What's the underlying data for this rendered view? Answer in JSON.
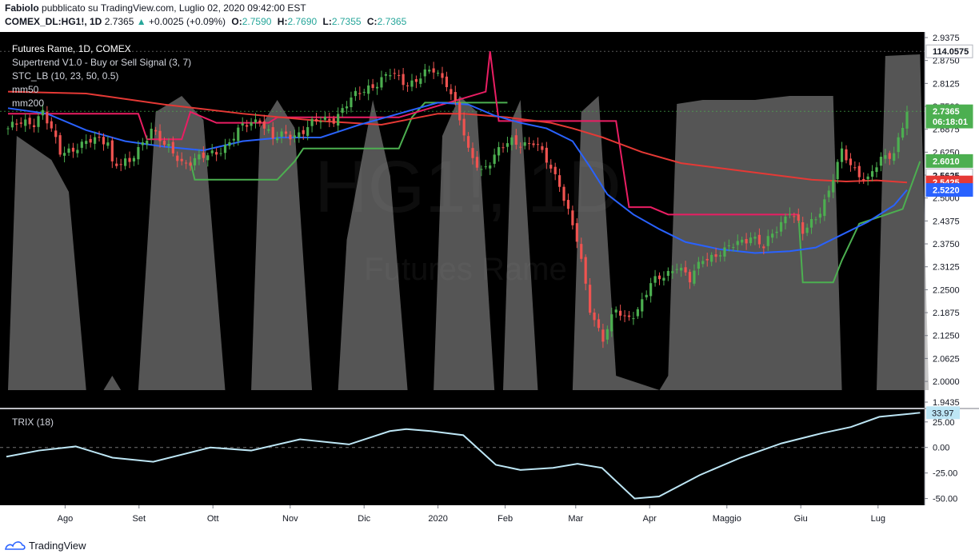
{
  "header": {
    "author": "Fabiolo",
    "published": "pubblicato su TradingView.com, Luglio 02, 2020 09:42:00 EST",
    "symbol": "COMEX_DL:HG1!, 1D",
    "last": "2.7365",
    "change": "+0.0025 (+0.09%)",
    "o_label": "O:",
    "o": "2.7590",
    "h_label": "H:",
    "h": "2.7690",
    "l_label": "L:",
    "l": "2.7355",
    "c_label": "C:",
    "c": "2.7365"
  },
  "legend": {
    "title": "Futures Rame, 1D, COMEX",
    "indicators": [
      "Supertrend V1.0 - Buy or Sell Signal (3, 7)",
      "STC_LB (10, 23, 50, 0.5)",
      "mm50",
      "mm200"
    ]
  },
  "watermark": {
    "symbol": "HG1!, 1D",
    "name": "Futures Rame"
  },
  "trix_label": "TRIX (18)",
  "footer": {
    "brand": "TradingView"
  },
  "colors": {
    "background": "#000000",
    "up": "#4caf50",
    "down": "#ef5350",
    "mm50": "#2962ff",
    "mm200": "#e53935",
    "supertrend_up": "#4caf50",
    "supertrend_down": "#e91e63",
    "stc_fill": "#9a9a9a",
    "trix": "#bde6f5"
  },
  "chart_data": [
    {
      "type": "candlestick",
      "title": "Futures Rame, 1D, COMEX",
      "x_ticks": [
        "Ago",
        "Set",
        "Ott",
        "Nov",
        "Dic",
        "2020",
        "Feb",
        "Mar",
        "Apr",
        "Maggio",
        "Giu",
        "Lug"
      ],
      "y_ticks": [
        "2.9375",
        "2.8750",
        "2.8125",
        "2.7500",
        "2.6875",
        "2.6250",
        "2.5625",
        "2.5000",
        "2.4375",
        "2.3750",
        "2.3125",
        "2.2500",
        "2.1875",
        "2.1250",
        "2.0625",
        "2.0000",
        "1.9435"
      ],
      "ylim": [
        1.9435,
        2.9375
      ],
      "badges": [
        {
          "label": "114.0575",
          "value": 2.9,
          "style": "white"
        },
        {
          "label": "2.7365",
          "value": 2.7365,
          "style": "green"
        },
        {
          "label": "06:18:01",
          "value": 2.7085,
          "style": "green"
        },
        {
          "label": "2.6010",
          "value": 2.601,
          "style": "green"
        },
        {
          "label": "2.5625",
          "value": 2.562,
          "style": "white"
        },
        {
          "label": "2.5425",
          "value": 2.5425,
          "style": "red"
        },
        {
          "label": "2.5220",
          "value": 2.522,
          "style": "blue"
        }
      ],
      "price_path": [
        [
          0,
          2.69
        ],
        [
          6,
          2.71
        ],
        [
          8,
          2.74
        ],
        [
          12,
          2.62
        ],
        [
          16,
          2.645
        ],
        [
          23,
          2.66
        ],
        [
          24,
          2.6
        ],
        [
          28,
          2.59
        ],
        [
          33,
          2.695
        ],
        [
          36,
          2.64
        ],
        [
          40,
          2.6
        ],
        [
          46,
          2.61
        ],
        [
          50,
          2.645
        ],
        [
          54,
          2.69
        ],
        [
          58,
          2.72
        ],
        [
          61,
          2.66
        ],
        [
          66,
          2.675
        ],
        [
          70,
          2.7
        ],
        [
          75,
          2.72
        ],
        [
          78,
          2.755
        ],
        [
          83,
          2.805
        ],
        [
          88,
          2.835
        ],
        [
          92,
          2.815
        ],
        [
          98,
          2.845
        ],
        [
          101,
          2.82
        ],
        [
          103,
          2.76
        ],
        [
          106,
          2.62
        ],
        [
          109,
          2.58
        ],
        [
          112,
          2.615
        ],
        [
          116,
          2.655
        ],
        [
          121,
          2.65
        ],
        [
          124,
          2.6
        ],
        [
          127,
          2.545
        ],
        [
          131,
          2.38
        ],
        [
          134,
          2.2
        ],
        [
          137,
          2.12
        ],
        [
          140,
          2.19
        ],
        [
          142,
          2.17
        ],
        [
          145,
          2.2
        ],
        [
          148,
          2.26
        ],
        [
          151,
          2.29
        ],
        [
          154,
          2.32
        ],
        [
          157,
          2.27
        ],
        [
          160,
          2.34
        ],
        [
          165,
          2.35
        ],
        [
          168,
          2.38
        ],
        [
          171,
          2.4
        ],
        [
          174,
          2.36
        ],
        [
          177,
          2.42
        ],
        [
          180,
          2.47
        ],
        [
          183,
          2.4
        ],
        [
          186,
          2.45
        ],
        [
          189,
          2.52
        ],
        [
          192,
          2.62
        ],
        [
          195,
          2.58
        ],
        [
          198,
          2.55
        ],
        [
          201,
          2.6
        ],
        [
          204,
          2.63
        ],
        [
          207,
          2.7365
        ]
      ],
      "series": [
        {
          "name": "mm50",
          "type": "line",
          "values": [
            [
              0,
              2.745
            ],
            [
              9,
              2.73
            ],
            [
              18,
              2.685
            ],
            [
              27,
              2.655
            ],
            [
              36,
              2.64
            ],
            [
              45,
              2.63
            ],
            [
              54,
              2.655
            ],
            [
              63,
              2.665
            ],
            [
              72,
              2.665
            ],
            [
              81,
              2.7
            ],
            [
              90,
              2.73
            ],
            [
              99,
              2.76
            ],
            [
              106,
              2.755
            ],
            [
              112,
              2.725
            ],
            [
              118,
              2.705
            ],
            [
              124,
              2.69
            ],
            [
              130,
              2.655
            ],
            [
              134,
              2.585
            ],
            [
              138,
              2.51
            ],
            [
              144,
              2.455
            ],
            [
              150,
              2.415
            ],
            [
              156,
              2.38
            ],
            [
              164,
              2.36
            ],
            [
              172,
              2.35
            ],
            [
              180,
              2.355
            ],
            [
              186,
              2.365
            ],
            [
              192,
              2.4
            ],
            [
              198,
              2.435
            ],
            [
              204,
              2.48
            ],
            [
              207,
              2.522
            ]
          ]
        },
        {
          "name": "mm200",
          "type": "line",
          "values": [
            [
              0,
              2.79
            ],
            [
              18,
              2.785
            ],
            [
              36,
              2.755
            ],
            [
              54,
              2.73
            ],
            [
              72,
              2.71
            ],
            [
              86,
              2.7
            ],
            [
              99,
              2.73
            ],
            [
              105,
              2.73
            ],
            [
              115,
              2.72
            ],
            [
              125,
              2.705
            ],
            [
              130,
              2.69
            ],
            [
              137,
              2.665
            ],
            [
              146,
              2.625
            ],
            [
              155,
              2.595
            ],
            [
              165,
              2.58
            ],
            [
              175,
              2.565
            ],
            [
              185,
              2.55
            ],
            [
              193,
              2.545
            ],
            [
              200,
              2.548
            ],
            [
              207,
              2.5425
            ]
          ]
        }
      ]
    },
    {
      "type": "line",
      "title": "TRIX (18)",
      "y_ticks": [
        "25.00",
        "0.00",
        "-25.00",
        "-50.00"
      ],
      "ylim": [
        -55,
        35
      ],
      "last_value": "33.97",
      "series": [
        {
          "name": "TRIX (18)",
          "values": [
            [
              0,
              -9
            ],
            [
              8,
              -3
            ],
            [
              17,
              1
            ],
            [
              26,
              -10
            ],
            [
              36,
              -14
            ],
            [
              50,
              0
            ],
            [
              60,
              -3
            ],
            [
              72,
              8
            ],
            [
              84,
              3
            ],
            [
              94,
              16
            ],
            [
              98,
              18
            ],
            [
              104,
              16
            ],
            [
              112,
              12
            ],
            [
              120,
              -17
            ],
            [
              126,
              -22
            ],
            [
              134,
              -20
            ],
            [
              140,
              -16
            ],
            [
              146,
              -20
            ],
            [
              154,
              -50
            ],
            [
              160,
              -48
            ],
            [
              170,
              -27
            ],
            [
              180,
              -10
            ],
            [
              190,
              4
            ],
            [
              200,
              14
            ],
            [
              207,
              20
            ],
            [
              214,
              30
            ],
            [
              224,
              33.97
            ]
          ]
        }
      ]
    }
  ]
}
